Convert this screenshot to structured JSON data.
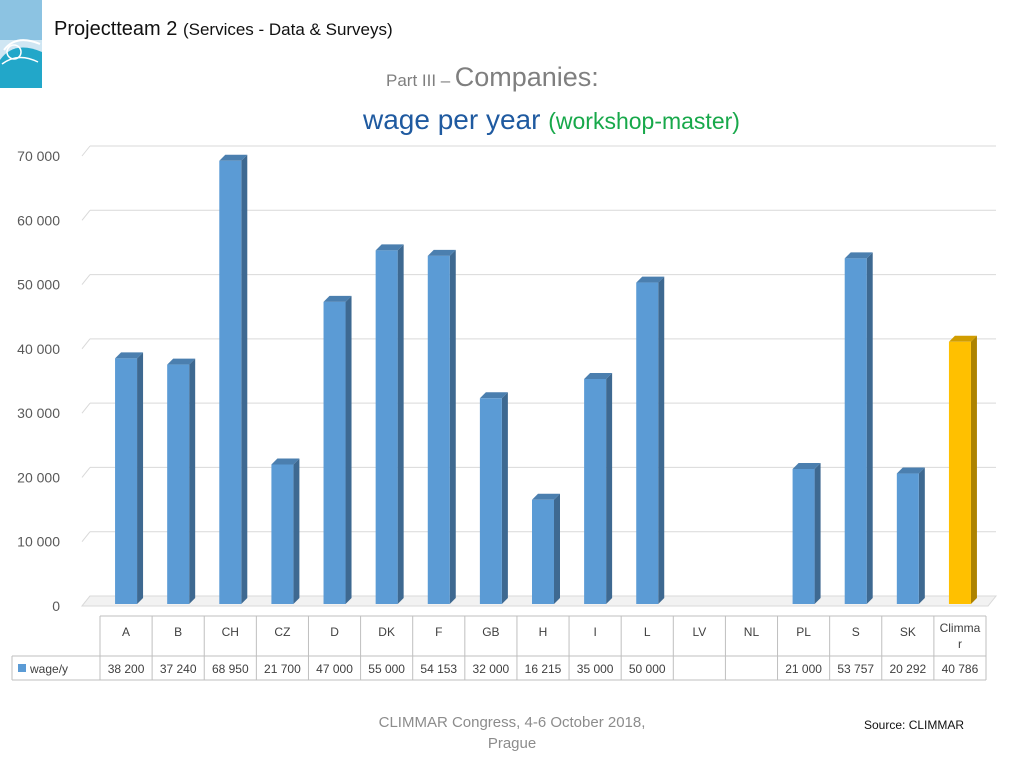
{
  "header": {
    "main": "Projectteam 2",
    "sub": "(Services - Data & Surveys)"
  },
  "title": {
    "part_prefix": "Part III –",
    "part_main": "Companies:",
    "line2_main": "wage per year",
    "line2_paren": "(workshop-master)"
  },
  "footer": {
    "line1": "CLIMMAR Congress, 4-6 October 2018,",
    "line2": "Prague"
  },
  "source": "Source: CLIMMAR",
  "colors": {
    "bar": "#5b9bd5",
    "bar_highlight": "#ffc000",
    "header_blue": "#1f5aa0",
    "green": "#17a84a"
  },
  "chart_data": {
    "type": "bar",
    "categories": [
      "A",
      "B",
      "CH",
      "CZ",
      "D",
      "DK",
      "F",
      "GB",
      "H",
      "I",
      "L",
      "LV",
      "NL",
      "PL",
      "S",
      "SK",
      "Climmar"
    ],
    "series": [
      {
        "name": "wage/y",
        "values": [
          38200,
          37240,
          68950,
          21700,
          47000,
          55000,
          54153,
          32000,
          16215,
          35000,
          50000,
          null,
          null,
          21000,
          53757,
          20292,
          40786
        ],
        "labels": [
          "38 200",
          "37 240",
          "68 950",
          "21 700",
          "47 000",
          "55 000",
          "54 153",
          "32 000",
          "16 215",
          "35 000",
          "50 000",
          "",
          "",
          "21 000",
          "53 757",
          "20 292",
          "40 786"
        ]
      }
    ],
    "highlight_category": "Climmar",
    "yticks": [
      "0",
      "10 000",
      "20 000",
      "30 000",
      "40 000",
      "50 000",
      "60 000",
      "70 000"
    ],
    "ylim": [
      0,
      70000
    ],
    "ytick_step": 10000,
    "grid": true,
    "data_table": true,
    "style": "3d-column"
  }
}
